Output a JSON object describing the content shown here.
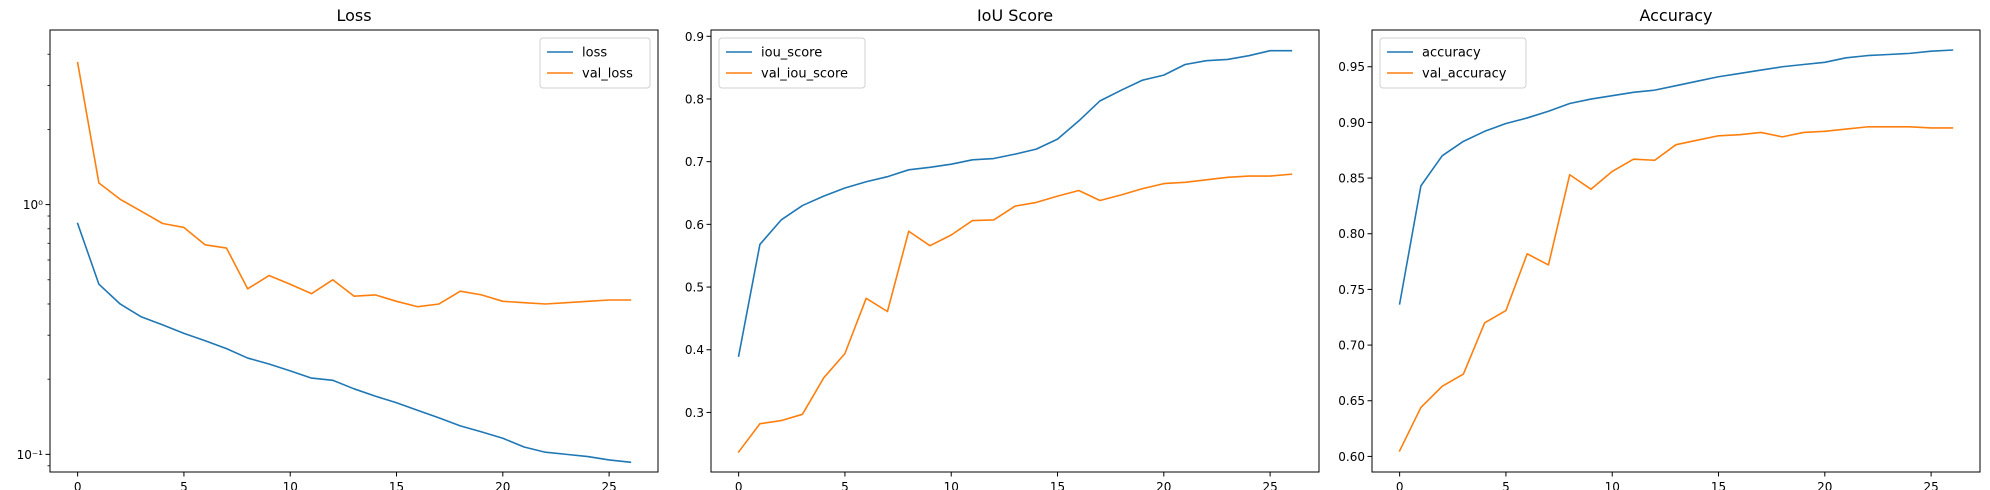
{
  "colors": {
    "series1": "#1f77b4",
    "series2": "#ff7f0e",
    "axis": "#000000"
  },
  "chart_data": [
    {
      "type": "line",
      "title": "Loss",
      "xlabel": "",
      "ylabel": "",
      "yscale": "log",
      "xlim": [
        -1.3,
        27.3
      ],
      "ylim": [
        0.085,
        5.0
      ],
      "grid": false,
      "legend_position": "top-right",
      "x_ticks": [
        0,
        5,
        10,
        15,
        20,
        25
      ],
      "x_tick_labels": [
        "0",
        "5",
        "10",
        "15",
        "20",
        "25"
      ],
      "y_ticks": [
        0.1,
        1
      ],
      "y_tick_labels": [
        "10⁻¹",
        "10⁰"
      ],
      "x": [
        0,
        1,
        2,
        3,
        4,
        5,
        6,
        7,
        8,
        9,
        10,
        11,
        12,
        13,
        14,
        15,
        16,
        17,
        18,
        19,
        20,
        21,
        22,
        23,
        24,
        25,
        26
      ],
      "series": [
        {
          "name": "loss",
          "color": "#1f77b4",
          "values": [
            0.84,
            0.48,
            0.4,
            0.355,
            0.33,
            0.305,
            0.285,
            0.265,
            0.243,
            0.23,
            0.216,
            0.202,
            0.198,
            0.183,
            0.171,
            0.161,
            0.15,
            0.14,
            0.13,
            0.123,
            0.116,
            0.107,
            0.102,
            0.1,
            0.098,
            0.095,
            0.093
          ]
        },
        {
          "name": "val_loss",
          "color": "#ff7f0e",
          "values": [
            3.7,
            1.22,
            1.05,
            0.94,
            0.84,
            0.81,
            0.69,
            0.67,
            0.46,
            0.52,
            0.48,
            0.44,
            0.5,
            0.43,
            0.435,
            0.41,
            0.39,
            0.4,
            0.45,
            0.435,
            0.41,
            0.405,
            0.4,
            0.405,
            0.41,
            0.415,
            0.415
          ]
        }
      ]
    },
    {
      "type": "line",
      "title": "IoU Score",
      "xlabel": "",
      "ylabel": "",
      "yscale": "linear",
      "xlim": [
        -1.3,
        27.3
      ],
      "ylim": [
        0.205,
        0.91
      ],
      "grid": false,
      "legend_position": "top-left",
      "x_ticks": [
        0,
        5,
        10,
        15,
        20,
        25
      ],
      "x_tick_labels": [
        "0",
        "5",
        "10",
        "15",
        "20",
        "25"
      ],
      "y_ticks": [
        0.3,
        0.4,
        0.5,
        0.6,
        0.7,
        0.8,
        0.9
      ],
      "y_tick_labels": [
        "0.3",
        "0.4",
        "0.5",
        "0.6",
        "0.7",
        "0.8",
        "0.9"
      ],
      "x": [
        0,
        1,
        2,
        3,
        4,
        5,
        6,
        7,
        8,
        9,
        10,
        11,
        12,
        13,
        14,
        15,
        16,
        17,
        18,
        19,
        20,
        21,
        22,
        23,
        24,
        25,
        26
      ],
      "series": [
        {
          "name": "iou_score",
          "color": "#1f77b4",
          "values": [
            0.39,
            0.568,
            0.607,
            0.63,
            0.645,
            0.658,
            0.668,
            0.676,
            0.687,
            0.691,
            0.696,
            0.703,
            0.705,
            0.712,
            0.72,
            0.736,
            0.765,
            0.797,
            0.814,
            0.83,
            0.838,
            0.855,
            0.861,
            0.863,
            0.869,
            0.877,
            0.877
          ]
        },
        {
          "name": "val_iou_score",
          "color": "#ff7f0e",
          "values": [
            0.237,
            0.282,
            0.287,
            0.297,
            0.355,
            0.394,
            0.482,
            0.461,
            0.589,
            0.566,
            0.583,
            0.606,
            0.607,
            0.629,
            0.635,
            0.645,
            0.654,
            0.638,
            0.647,
            0.657,
            0.665,
            0.667,
            0.671,
            0.675,
            0.677,
            0.677,
            0.68
          ]
        }
      ]
    },
    {
      "type": "line",
      "title": "Accuracy",
      "xlabel": "",
      "ylabel": "",
      "yscale": "linear",
      "xlim": [
        -1.3,
        27.3
      ],
      "ylim": [
        0.586,
        0.983
      ],
      "grid": false,
      "legend_position": "top-left",
      "x_ticks": [
        0,
        5,
        10,
        15,
        20,
        25
      ],
      "x_tick_labels": [
        "0",
        "5",
        "10",
        "15",
        "20",
        "25"
      ],
      "y_ticks": [
        0.6,
        0.65,
        0.7,
        0.75,
        0.8,
        0.85,
        0.9,
        0.95
      ],
      "y_tick_labels": [
        "0.60",
        "0.65",
        "0.70",
        "0.75",
        "0.80",
        "0.85",
        "0.90",
        "0.95"
      ],
      "x": [
        0,
        1,
        2,
        3,
        4,
        5,
        6,
        7,
        8,
        9,
        10,
        11,
        12,
        13,
        14,
        15,
        16,
        17,
        18,
        19,
        20,
        21,
        22,
        23,
        24,
        25,
        26
      ],
      "series": [
        {
          "name": "accuracy",
          "color": "#1f77b4",
          "values": [
            0.737,
            0.843,
            0.87,
            0.883,
            0.892,
            0.899,
            0.904,
            0.91,
            0.917,
            0.921,
            0.924,
            0.927,
            0.929,
            0.933,
            0.937,
            0.941,
            0.944,
            0.947,
            0.95,
            0.952,
            0.954,
            0.958,
            0.96,
            0.961,
            0.962,
            0.964,
            0.965
          ]
        },
        {
          "name": "val_accuracy",
          "color": "#ff7f0e",
          "values": [
            0.605,
            0.644,
            0.663,
            0.674,
            0.72,
            0.731,
            0.782,
            0.772,
            0.853,
            0.84,
            0.856,
            0.867,
            0.866,
            0.88,
            0.884,
            0.888,
            0.889,
            0.891,
            0.887,
            0.891,
            0.892,
            0.894,
            0.896,
            0.896,
            0.896,
            0.895,
            0.895
          ]
        }
      ]
    }
  ]
}
